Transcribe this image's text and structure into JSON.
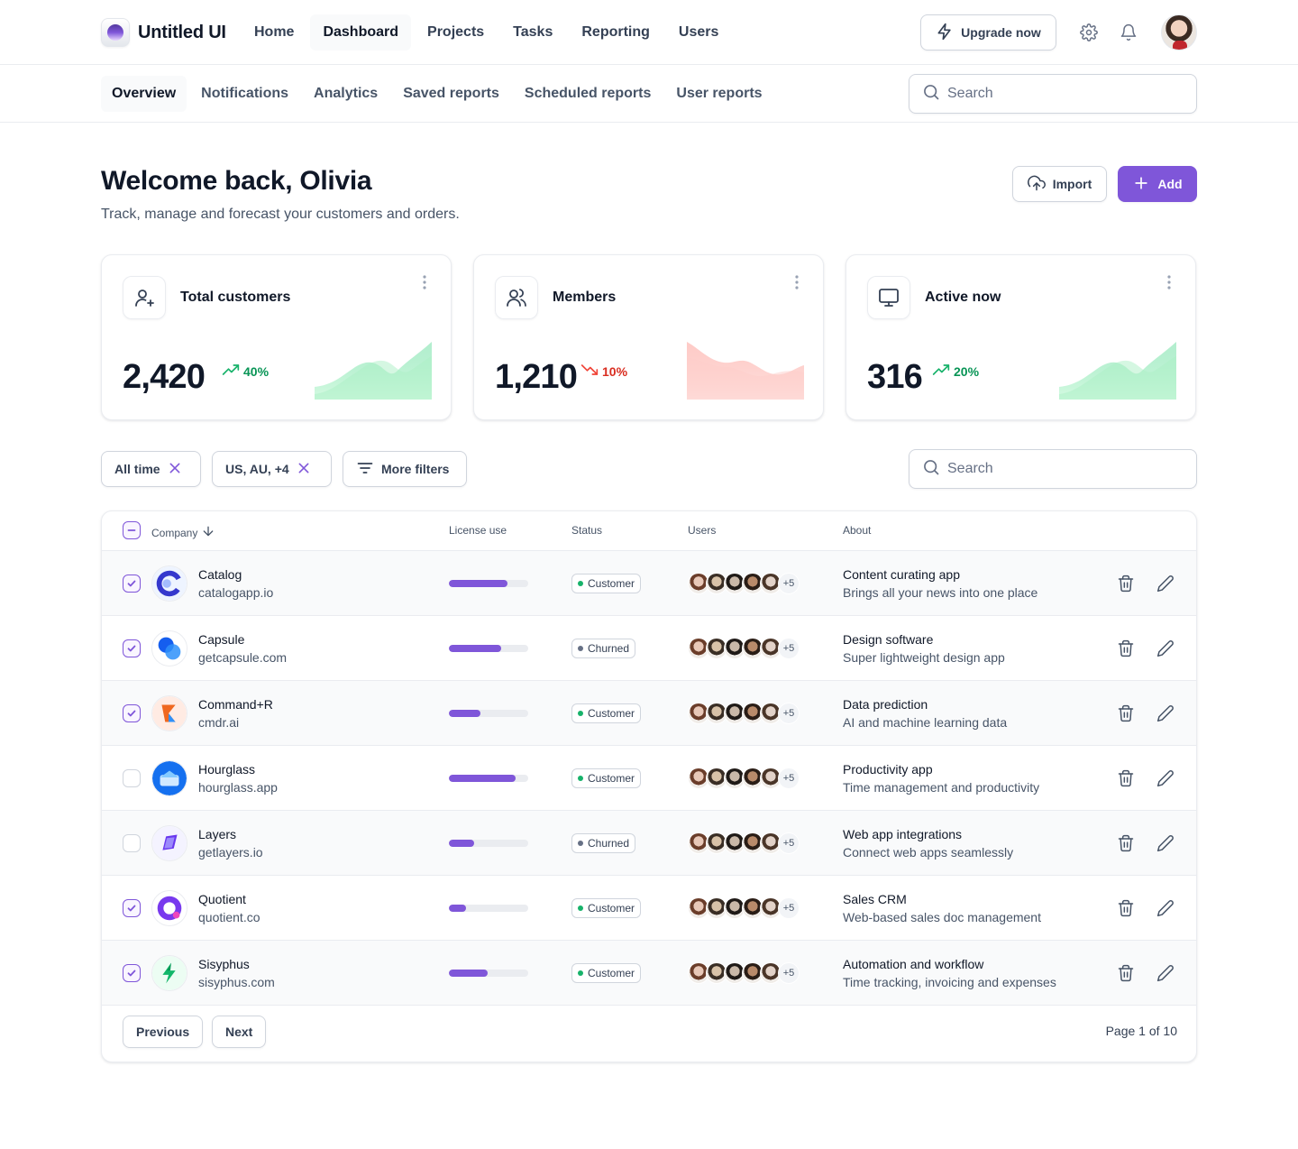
{
  "app": {
    "name": "Untitled UI"
  },
  "main_nav": [
    {
      "label": "Home",
      "active": false
    },
    {
      "label": "Dashboard",
      "active": true
    },
    {
      "label": "Projects",
      "active": false
    },
    {
      "label": "Tasks",
      "active": false
    },
    {
      "label": "Reporting",
      "active": false
    },
    {
      "label": "Users",
      "active": false
    }
  ],
  "header_actions": {
    "upgrade_label": "Upgrade now",
    "upgrade_icon": "zap-icon",
    "settings_icon": "gear-icon",
    "notifications_icon": "bell-icon"
  },
  "sub_nav": [
    {
      "label": "Overview",
      "active": true
    },
    {
      "label": "Notifications",
      "active": false
    },
    {
      "label": "Analytics",
      "active": false
    },
    {
      "label": "Saved reports",
      "active": false
    },
    {
      "label": "Scheduled reports",
      "active": false
    },
    {
      "label": "User reports",
      "active": false
    }
  ],
  "top_search": {
    "placeholder": "Search"
  },
  "page": {
    "title": "Welcome back, Olivia",
    "subtitle": "Track, manage and forecast your customers and orders.",
    "import_label": "Import",
    "add_label": "Add"
  },
  "metrics": [
    {
      "title": "Total customers",
      "value": "2,420",
      "trend": "40%",
      "direction": "up",
      "icon": "user-plus-icon"
    },
    {
      "title": "Members",
      "value": "1,210",
      "trend": "10%",
      "direction": "down",
      "icon": "users-icon"
    },
    {
      "title": "Active now",
      "value": "316",
      "trend": "20%",
      "direction": "up",
      "icon": "monitor-icon"
    }
  ],
  "colors": {
    "accent": "#7F56D9",
    "trend_up": "#079455",
    "trend_down": "#D92D20",
    "status_customer": "#17B26A",
    "status_churned": "#667085"
  },
  "filters": {
    "chips": [
      {
        "label": "All time",
        "removable": true
      },
      {
        "label": "US, AU, +4",
        "removable": true
      }
    ],
    "more_filters_label": "More filters",
    "search_placeholder": "Search"
  },
  "table": {
    "columns": {
      "company": "Company",
      "license": "License use",
      "status": "Status",
      "users": "Users",
      "about": "About"
    },
    "extra_users": "+5",
    "rows": [
      {
        "name": "Catalog",
        "domain": "catalogapp.io",
        "license": 0.74,
        "status": "Customer",
        "about_title": "Content curating app",
        "about_desc": "Brings all your news into one place",
        "checked": true
      },
      {
        "name": "Capsule",
        "domain": "getcapsule.com",
        "license": 0.66,
        "status": "Churned",
        "about_title": "Design software",
        "about_desc": "Super lightweight design app",
        "checked": true
      },
      {
        "name": "Command+R",
        "domain": "cmdr.ai",
        "license": 0.4,
        "status": "Customer",
        "about_title": "Data prediction",
        "about_desc": "AI and machine learning data",
        "checked": true
      },
      {
        "name": "Hourglass",
        "domain": "hourglass.app",
        "license": 0.84,
        "status": "Customer",
        "about_title": "Productivity app",
        "about_desc": "Time management and productivity",
        "checked": false
      },
      {
        "name": "Layers",
        "domain": "getlayers.io",
        "license": 0.32,
        "status": "Churned",
        "about_title": "Web app integrations",
        "about_desc": "Connect web apps seamlessly",
        "checked": false
      },
      {
        "name": "Quotient",
        "domain": "quotient.co",
        "license": 0.22,
        "status": "Customer",
        "about_title": "Sales CRM",
        "about_desc": "Web-based sales doc management",
        "checked": true
      },
      {
        "name": "Sisyphus",
        "domain": "sisyphus.com",
        "license": 0.49,
        "status": "Customer",
        "about_title": "Automation and workflow",
        "about_desc": "Time tracking, invoicing and expenses",
        "checked": true
      }
    ]
  },
  "pagination": {
    "previous": "Previous",
    "next": "Next",
    "page_text": "Page 1 of 10"
  }
}
